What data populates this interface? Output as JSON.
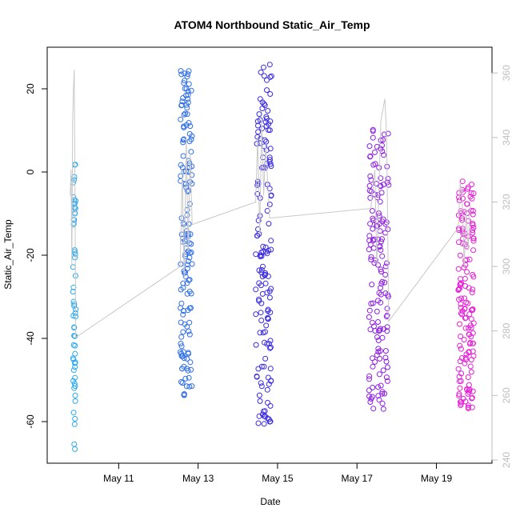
{
  "chart_data": {
    "type": "scatter",
    "title": "ATOM4 Northbound Static_Air_Temp",
    "xlabel": "Date",
    "ylabel": "Static_Air_Temp",
    "x_ticks": [
      "May 11",
      "May 13",
      "May 15",
      "May 17",
      "May 19"
    ],
    "x_tick_values": [
      11,
      13,
      15,
      17,
      19
    ],
    "xlim": [
      9.2,
      20.4
    ],
    "ylim": [
      -70,
      30
    ],
    "y_ticks": [
      -60,
      -40,
      -20,
      0,
      20
    ],
    "y2lim": [
      239,
      368
    ],
    "y2_ticks": [
      240,
      260,
      280,
      300,
      320,
      340,
      360
    ],
    "grid": false,
    "line_color": "#c8c8c8",
    "right_axis_color": "#bdbdbd",
    "clusters": [
      {
        "x_range": [
          9.85,
          9.92
        ],
        "y_range": [
          -67,
          2
        ],
        "color": "#29a8f0",
        "n": 60
      },
      {
        "x_range": [
          12.55,
          12.85
        ],
        "y_range": [
          -54,
          25
        ],
        "color": "#2f6ee8",
        "n": 150
      },
      {
        "x_range": [
          14.45,
          14.85
        ],
        "y_range": [
          -61,
          26
        ],
        "color": "#3b2be6",
        "n": 150
      },
      {
        "x_range": [
          17.3,
          17.8
        ],
        "y_range": [
          -57,
          12
        ],
        "color": "#8e1fe6",
        "n": 150
      },
      {
        "x_range": [
          19.55,
          19.95
        ],
        "y_range": [
          -57,
          -2
        ],
        "color": "#e61fd6",
        "n": 150
      }
    ],
    "line_series": [
      {
        "x": 9.78,
        "y": 322
      },
      {
        "x": 9.8,
        "y": 330
      },
      {
        "x": 9.82,
        "y": 300
      },
      {
        "x": 9.84,
        "y": 345
      },
      {
        "x": 9.86,
        "y": 355
      },
      {
        "x": 9.88,
        "y": 361
      },
      {
        "x": 9.9,
        "y": 320
      },
      {
        "x": 9.92,
        "y": 278
      },
      {
        "x": 12.55,
        "y": 300
      },
      {
        "x": 12.6,
        "y": 330
      },
      {
        "x": 12.65,
        "y": 295
      },
      {
        "x": 12.7,
        "y": 340
      },
      {
        "x": 12.75,
        "y": 305
      },
      {
        "x": 12.8,
        "y": 335
      },
      {
        "x": 12.85,
        "y": 313
      },
      {
        "x": 14.45,
        "y": 320
      },
      {
        "x": 14.5,
        "y": 340
      },
      {
        "x": 14.55,
        "y": 310
      },
      {
        "x": 14.6,
        "y": 345
      },
      {
        "x": 14.65,
        "y": 322
      },
      {
        "x": 14.7,
        "y": 338
      },
      {
        "x": 14.8,
        "y": 315
      },
      {
        "x": 17.35,
        "y": 318
      },
      {
        "x": 17.45,
        "y": 330
      },
      {
        "x": 17.5,
        "y": 300
      },
      {
        "x": 17.6,
        "y": 345
      },
      {
        "x": 17.7,
        "y": 352
      },
      {
        "x": 17.75,
        "y": 340
      },
      {
        "x": 17.8,
        "y": 283
      },
      {
        "x": 19.55,
        "y": 312
      },
      {
        "x": 19.6,
        "y": 326
      },
      {
        "x": 19.65,
        "y": 320
      },
      {
        "x": 19.7,
        "y": 300
      },
      {
        "x": 19.75,
        "y": 318
      },
      {
        "x": 19.8,
        "y": 305
      },
      {
        "x": 19.85,
        "y": 320
      }
    ]
  }
}
